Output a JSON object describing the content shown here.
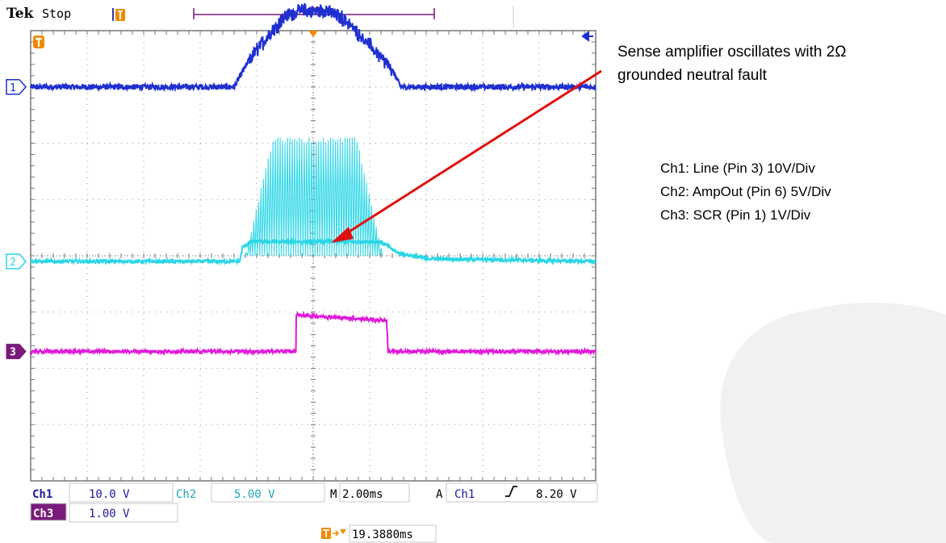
{
  "header": {
    "brand": "Tek",
    "status": "Stop"
  },
  "annotation": {
    "line1": "Sense amplifier oscillates with 2Ω",
    "line2": "grounded neutral fault"
  },
  "channel_notes": [
    "Ch1: Line (Pin 3) 10V/Div",
    "Ch2: AmpOut (Pin 6) 5V/Div",
    "Ch3: SCR (Pin 1) 1V/Div"
  ],
  "colors": {
    "ch1": "#1f2fd0",
    "ch2": "#2ad6e6",
    "ch3": "#e01ad8",
    "ch3_badge": "#7a1a7a",
    "trigger": "#f08a00",
    "arrow": "#e01010",
    "readout_blue": "#1a1a9a",
    "backdrop": "#f1f1f1"
  },
  "icons": {
    "trigger_marker": "trigger-t-icon",
    "trigger_position": "trigger-position-triangle-icon",
    "trigger_level": "trigger-level-arrow-icon",
    "rising_edge": "rising-edge-icon"
  },
  "readout": {
    "ch1_label": "Ch1",
    "ch1_scale": "10.0 V",
    "ch2_label": "Ch2",
    "ch2_scale": "5.00 V",
    "timebase_prefix": "M",
    "timebase": "2.00ms",
    "acq_prefix": "A",
    "trigger_source": "Ch1",
    "trigger_level": "8.20 V",
    "ch3_label": "Ch3",
    "ch3_scale": "1.00 V",
    "trigger_offset": "19.3880ms"
  },
  "chart_data": {
    "type": "line",
    "grid": true,
    "x_divisions": 10,
    "y_divisions": 8,
    "xlim": [
      -10,
      10
    ],
    "time_unit": "ms",
    "trigger_time_ms": 0,
    "trigger_level_div": 3.9,
    "series": [
      {
        "name": "Ch1",
        "color": "ch1",
        "ground_div": 3.0,
        "noise": 0.05,
        "points": [
          [
            -10,
            3.0
          ],
          [
            -2.8,
            3.0
          ],
          [
            -2.3,
            3.45
          ],
          [
            -1.7,
            3.85
          ],
          [
            -1.0,
            4.25
          ],
          [
            -0.5,
            4.35
          ],
          [
            0.5,
            4.35
          ],
          [
            1.1,
            4.2
          ],
          [
            1.8,
            3.85
          ],
          [
            2.8,
            3.3
          ],
          [
            3.1,
            3.0
          ],
          [
            10,
            3.0
          ]
        ],
        "ripple": {
          "start": -2.3,
          "end": 2.8,
          "amp": 0.1
        }
      },
      {
        "name": "Ch2",
        "color": "ch2",
        "ground_div": -0.1,
        "noise": 0.03,
        "points": [
          [
            -10,
            -0.1
          ],
          [
            -2.6,
            -0.1
          ],
          [
            -2.5,
            0.15
          ],
          [
            -2.2,
            0.25
          ],
          [
            2.4,
            0.25
          ],
          [
            3.0,
            0.05
          ],
          [
            4.0,
            -0.05
          ],
          [
            10,
            -0.1
          ]
        ],
        "oscillation": {
          "start": -2.4,
          "end": 2.4,
          "peak": 2.1,
          "floor": 0.05,
          "period": 0.085
        }
      },
      {
        "name": "Ch3",
        "color": "ch3",
        "ground_div": -1.7,
        "noise": 0.03,
        "points": [
          [
            -10,
            -1.7
          ],
          [
            -0.6,
            -1.7
          ],
          [
            -0.6,
            -1.05
          ],
          [
            2.6,
            -1.15
          ],
          [
            2.65,
            -1.7
          ],
          [
            10,
            -1.7
          ]
        ]
      }
    ]
  }
}
